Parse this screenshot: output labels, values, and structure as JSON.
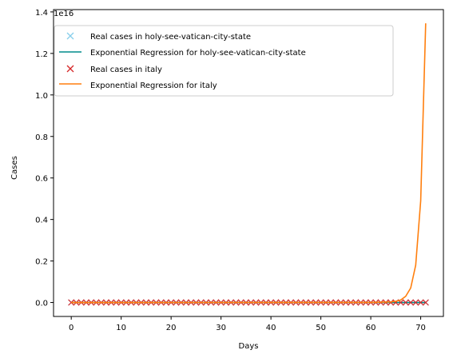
{
  "chart_data": {
    "type": "line",
    "title": "",
    "xlabel": "Days",
    "ylabel": "Cases",
    "y_offset_label": "1e16",
    "y_scale_factor": 1e+16,
    "xlim": [
      -3.55,
      74.55
    ],
    "ylim": [
      -0.0672,
      1.4112
    ],
    "x_ticks": [
      0,
      10,
      20,
      30,
      40,
      50,
      60,
      70
    ],
    "y_ticks": [
      0.0,
      0.2,
      0.4,
      0.6,
      0.8,
      1.0,
      1.2,
      1.4
    ],
    "y_tick_labels": [
      "0.0",
      "0.2",
      "0.4",
      "0.6",
      "0.8",
      "1.0",
      "1.2",
      "1.4"
    ],
    "grid": false,
    "legend_position": "upper-left",
    "series": [
      {
        "name": "Real cases in holy-see-vatican-city-state",
        "kind": "markers",
        "marker": "x",
        "color": "#87ceeb",
        "x_start": 0,
        "x_end": 71,
        "y_constant": 0
      },
      {
        "name": "Exponential Regression for holy-see-vatican-city-state",
        "kind": "line",
        "color": "#008b8b",
        "x": [
          0,
          71
        ],
        "y": [
          0,
          0
        ]
      },
      {
        "name": "Real cases in italy",
        "kind": "markers",
        "marker": "x",
        "color": "#d62728",
        "x_start": 0,
        "x_end": 71,
        "y_constant": 0
      },
      {
        "name": "Exponential Regression for italy",
        "kind": "line",
        "color": "#ff7f0e",
        "x": [
          0,
          60,
          64,
          65,
          66,
          67,
          68,
          69,
          70,
          71
        ],
        "y": [
          0,
          0.0005,
          0.003,
          0.006,
          0.012,
          0.03,
          0.07,
          0.18,
          0.49,
          1.345
        ]
      }
    ]
  }
}
